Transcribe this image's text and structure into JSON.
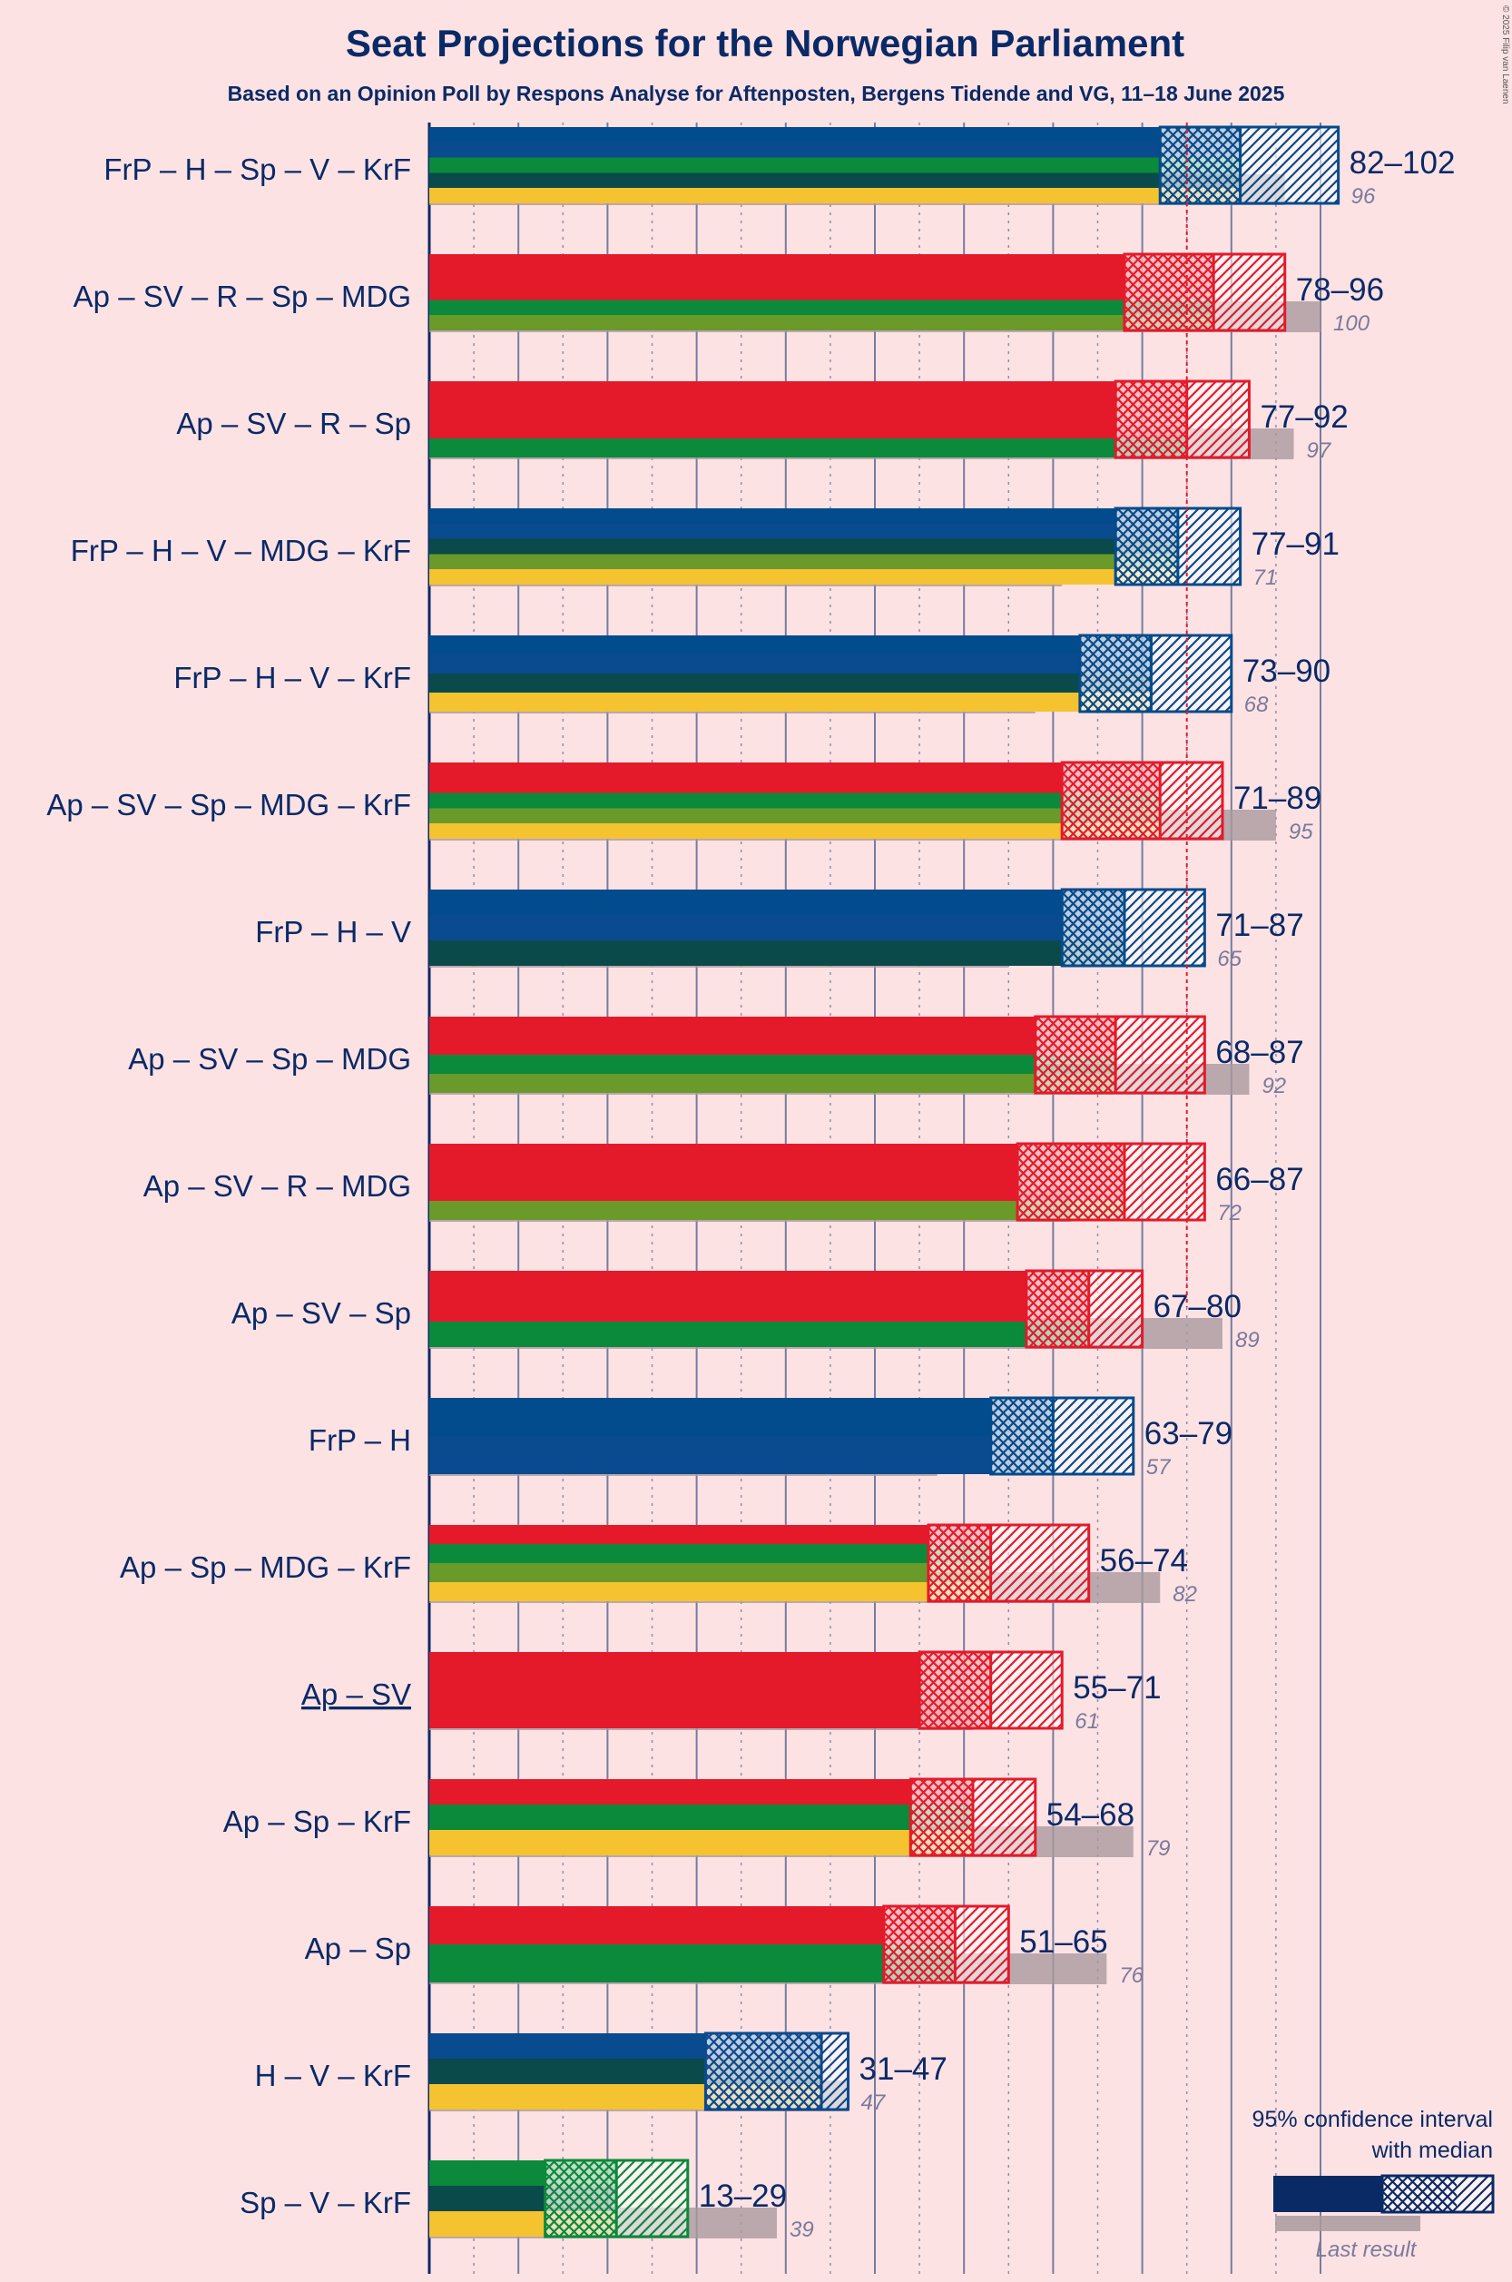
{
  "title": "Seat Projections for the Norwegian Parliament",
  "subtitle": "Based on an Opinion Poll by Respons Analyse for Aftenposten, Bergens Tidende and VG, 11–18 June 2025",
  "credit": "© 2025 Filip van Laenen",
  "legend": {
    "ci_label": "95% confidence interval",
    "median_label": "with median",
    "last_label": "Last result"
  },
  "party_colors": {
    "FrP": "#024b8c",
    "H": "#0a4a8f",
    "Sp": "#0a8a3a",
    "V": "#0a4a4a",
    "KrF": "#f5c330",
    "Ap": "#e41a2a",
    "SV": "#e41a2a",
    "R": "#e41a2a",
    "MDG": "#6a9a2a"
  },
  "chart_data": {
    "type": "bar",
    "orientation": "horizontal",
    "xlim": [
      0,
      110
    ],
    "majority": 85,
    "series": [
      {
        "name": "FrP – H – Sp – V – KrF",
        "parties": [
          "FrP",
          "H",
          "Sp",
          "V",
          "KrF"
        ],
        "low": 82,
        "median": 91,
        "high": 102,
        "range": "82–102",
        "last": 96,
        "last_label": "96",
        "underline": false
      },
      {
        "name": "Ap – SV – R – Sp – MDG",
        "parties": [
          "Ap",
          "SV",
          "R",
          "Sp",
          "MDG"
        ],
        "low": 78,
        "median": 88,
        "high": 96,
        "range": "78–96",
        "last": 100,
        "last_label": "100",
        "underline": false
      },
      {
        "name": "Ap – SV – R – Sp",
        "parties": [
          "Ap",
          "SV",
          "R",
          "Sp"
        ],
        "low": 77,
        "median": 85,
        "high": 92,
        "range": "77–92",
        "last": 97,
        "last_label": "97",
        "underline": false
      },
      {
        "name": "FrP – H – V – MDG – KrF",
        "parties": [
          "FrP",
          "H",
          "V",
          "MDG",
          "KrF"
        ],
        "low": 77,
        "median": 84,
        "high": 91,
        "range": "77–91",
        "last": 71,
        "last_label": "71",
        "underline": false
      },
      {
        "name": "FrP – H – V – KrF",
        "parties": [
          "FrP",
          "H",
          "V",
          "KrF"
        ],
        "low": 73,
        "median": 81,
        "high": 90,
        "range": "73–90",
        "last": 68,
        "last_label": "68",
        "underline": false
      },
      {
        "name": "Ap – SV – Sp – MDG – KrF",
        "parties": [
          "Ap",
          "SV",
          "Sp",
          "MDG",
          "KrF"
        ],
        "low": 71,
        "median": 82,
        "high": 89,
        "range": "71–89",
        "last": 95,
        "last_label": "95",
        "underline": false
      },
      {
        "name": "FrP – H – V",
        "parties": [
          "FrP",
          "H",
          "V"
        ],
        "low": 71,
        "median": 78,
        "high": 87,
        "range": "71–87",
        "last": 65,
        "last_label": "65",
        "underline": false
      },
      {
        "name": "Ap – SV – Sp – MDG",
        "parties": [
          "Ap",
          "SV",
          "Sp",
          "MDG"
        ],
        "low": 68,
        "median": 77,
        "high": 87,
        "range": "68–87",
        "last": 92,
        "last_label": "92",
        "underline": false
      },
      {
        "name": "Ap – SV – R – MDG",
        "parties": [
          "Ap",
          "SV",
          "R",
          "MDG"
        ],
        "low": 66,
        "median": 78,
        "high": 87,
        "range": "66–87",
        "last": 72,
        "last_label": "72",
        "underline": false
      },
      {
        "name": "Ap – SV – Sp",
        "parties": [
          "Ap",
          "SV",
          "Sp"
        ],
        "low": 67,
        "median": 74,
        "high": 80,
        "range": "67–80",
        "last": 89,
        "last_label": "89",
        "underline": false
      },
      {
        "name": "FrP – H",
        "parties": [
          "FrP",
          "H"
        ],
        "low": 63,
        "median": 70,
        "high": 79,
        "range": "63–79",
        "last": 57,
        "last_label": "57",
        "underline": false
      },
      {
        "name": "Ap – Sp – MDG – KrF",
        "parties": [
          "Ap",
          "Sp",
          "MDG",
          "KrF"
        ],
        "low": 56,
        "median": 63,
        "high": 74,
        "range": "56–74",
        "last": 82,
        "last_label": "82",
        "underline": false
      },
      {
        "name": "Ap – SV",
        "parties": [
          "Ap",
          "SV"
        ],
        "low": 55,
        "median": 63,
        "high": 71,
        "range": "55–71",
        "last": 61,
        "last_label": "61",
        "underline": true
      },
      {
        "name": "Ap – Sp – KrF",
        "parties": [
          "Ap",
          "Sp",
          "KrF"
        ],
        "low": 54,
        "median": 61,
        "high": 68,
        "range": "54–68",
        "last": 79,
        "last_label": "79",
        "underline": false
      },
      {
        "name": "Ap – Sp",
        "parties": [
          "Ap",
          "Sp"
        ],
        "low": 51,
        "median": 59,
        "high": 65,
        "range": "51–65",
        "last": 76,
        "last_label": "76",
        "underline": false
      },
      {
        "name": "H – V – KrF",
        "parties": [
          "H",
          "V",
          "KrF"
        ],
        "low": 31,
        "median": 44,
        "high": 47,
        "range": "31–47",
        "last": 47,
        "last_label": "47",
        "underline": false
      },
      {
        "name": "Sp – V – KrF",
        "parties": [
          "Sp",
          "V",
          "KrF"
        ],
        "low": 13,
        "median": 21,
        "high": 29,
        "range": "13–29",
        "last": 39,
        "last_label": "39",
        "underline": false
      }
    ]
  }
}
